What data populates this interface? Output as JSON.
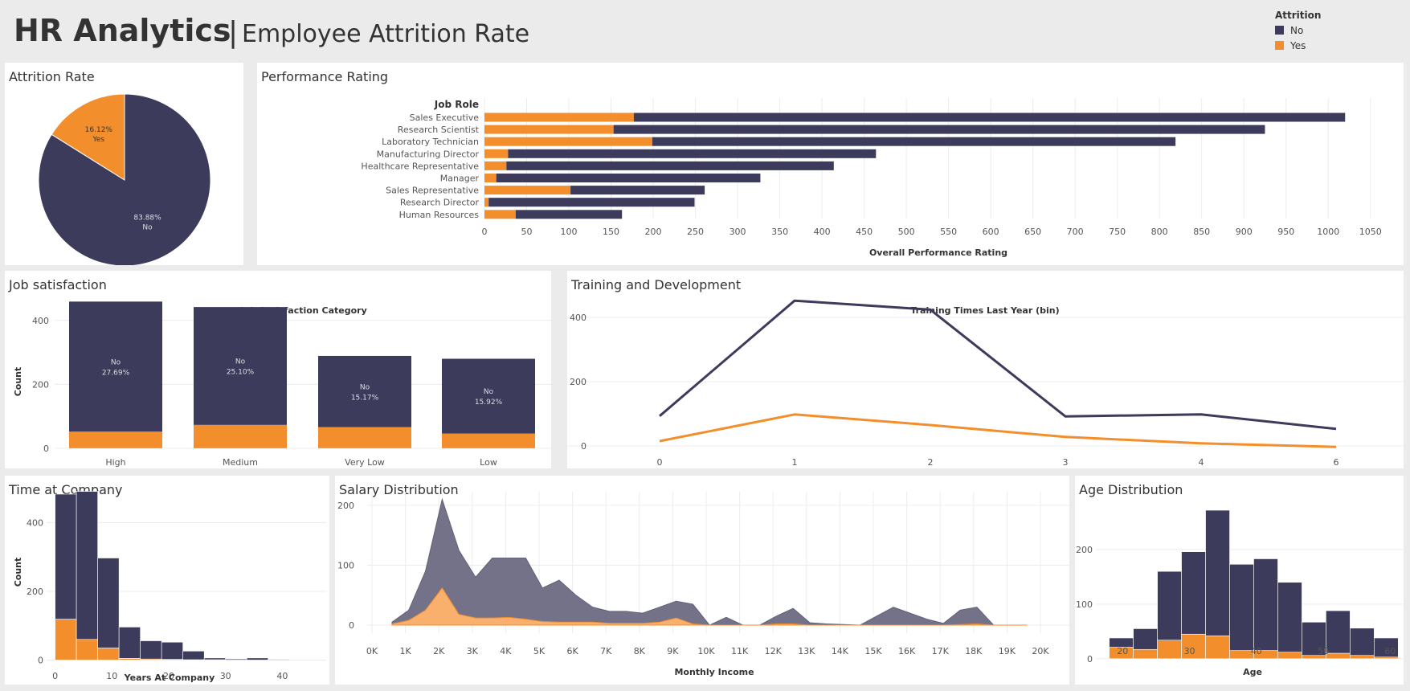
{
  "header": {
    "title": "HR Analytics",
    "separator": "|",
    "subtitle": "Employee Attrition Rate"
  },
  "legend": {
    "title": "Attrition",
    "items": [
      {
        "label": "No",
        "color": "#3d3b5c"
      },
      {
        "label": "Yes",
        "color": "#f28e2b"
      }
    ]
  },
  "colors": {
    "no": "#3d3b5c",
    "yes": "#f28e2b",
    "no_area": "#6c6b82",
    "yes_area": "#f8b06c",
    "grid": "#ececec",
    "axis_text": "#555555"
  },
  "panels": {
    "attrition": {
      "title": "Attrition Rate"
    },
    "performance": {
      "title": "Performance Rating"
    },
    "satisfaction": {
      "title": "Job satisfaction"
    },
    "training": {
      "title": "Training and Development"
    },
    "time": {
      "title": "Time at Company"
    },
    "salary": {
      "title": "Salary Distribution"
    },
    "age": {
      "title": "Age Distribution"
    }
  },
  "chart_data": [
    {
      "id": "attrition-rate",
      "type": "pie",
      "title": "Attrition Rate",
      "slices": [
        {
          "label": "No",
          "value": 83.88,
          "text": "83.88%"
        },
        {
          "label": "Yes",
          "value": 16.12,
          "text": "16.12%"
        }
      ]
    },
    {
      "id": "performance-rating",
      "type": "bar",
      "orientation": "horizontal",
      "stacked": true,
      "title": "Performance Rating",
      "ylabel": "Job Role",
      "xlabel": "Overall Performance Rating",
      "xlim": [
        0,
        1075
      ],
      "xticks": [
        0,
        50,
        100,
        150,
        200,
        250,
        300,
        350,
        400,
        450,
        500,
        550,
        600,
        650,
        700,
        750,
        800,
        850,
        900,
        950,
        1000,
        1050
      ],
      "categories": [
        "Sales Executive",
        "Research Scientist",
        "Laboratory Technician",
        "Manufacturing Director",
        "Healthcare Representative",
        "Manager",
        "Sales Representative",
        "Research Director",
        "Human Resources"
      ],
      "series": [
        {
          "name": "Yes",
          "values": [
            177,
            153,
            199,
            28,
            26,
            14,
            102,
            5,
            37
          ]
        },
        {
          "name": "No",
          "values": [
            843,
            772,
            620,
            436,
            388,
            313,
            159,
            244,
            126
          ]
        }
      ]
    },
    {
      "id": "job-satisfaction",
      "type": "bar",
      "stacked": true,
      "title": "Job Satisfaction Category",
      "ylabel": "Count",
      "ylim": [
        -18,
        480
      ],
      "yticks": [
        0,
        200,
        400
      ],
      "categories": [
        "High",
        "Medium",
        "Very Low",
        "Low"
      ],
      "series": [
        {
          "name": "No",
          "values": [
            407,
            369,
            223,
            234
          ],
          "labels": [
            "27.69%",
            "25.10%",
            "15.17%",
            "15.92%"
          ]
        },
        {
          "name": "Yes",
          "values": [
            52,
            73,
            66,
            46
          ]
        }
      ]
    },
    {
      "id": "training-development",
      "type": "line",
      "title": "Training Times Last Year (bin)",
      "x": [
        "0",
        "1",
        "2",
        "3",
        "4",
        "6"
      ],
      "ylim": [
        -25,
        470
      ],
      "yticks": [
        0,
        200,
        400
      ],
      "series": [
        {
          "name": "No",
          "values": [
            93,
            452,
            424,
            92,
            98,
            53
          ]
        },
        {
          "name": "Yes",
          "values": [
            15,
            98,
            65,
            28,
            8,
            -3
          ]
        }
      ]
    },
    {
      "id": "time-at-company",
      "type": "bar",
      "stacked": true,
      "histogram": true,
      "xlabel": "Years At Company",
      "ylabel": "Count",
      "xlim": [
        -1.5,
        41.5
      ],
      "xticks": [
        0,
        10,
        20,
        30,
        40
      ],
      "ylim": [
        -20,
        490
      ],
      "yticks": [
        0,
        200,
        400
      ],
      "bin_width": 3.75,
      "bins": [
        0,
        3.75,
        7.5,
        11.25,
        15,
        18.75,
        22.5,
        26.25,
        30,
        33.75,
        37.5
      ],
      "series": [
        {
          "name": "Yes",
          "values": [
            119,
            60,
            35,
            5,
            3,
            2,
            1,
            1,
            0,
            0,
            0
          ]
        },
        {
          "name": "No",
          "values": [
            364,
            431,
            262,
            91,
            53,
            50,
            25,
            5,
            3,
            6,
            2
          ]
        }
      ]
    },
    {
      "id": "salary-distribution",
      "type": "area",
      "xlabel": "Monthly Income",
      "xticks": [
        "0K",
        "1K",
        "2K",
        "3K",
        "4K",
        "5K",
        "6K",
        "7K",
        "8K",
        "9K",
        "10K",
        "11K",
        "12K",
        "13K",
        "14K",
        "15K",
        "16K",
        "17K",
        "18K",
        "19K",
        "20K"
      ],
      "xlim": [
        0,
        20000
      ],
      "ylim": [
        -8,
        220
      ],
      "yticks": [
        0,
        100,
        200
      ],
      "x": [
        600,
        1100,
        1600,
        2100,
        2600,
        3100,
        3600,
        4100,
        4600,
        5100,
        5600,
        6100,
        6600,
        7100,
        7600,
        8100,
        8600,
        9100,
        9600,
        10100,
        10600,
        11100,
        11600,
        12100,
        12600,
        13100,
        13600,
        14100,
        14600,
        15100,
        15600,
        16100,
        16600,
        17100,
        17600,
        18100,
        18600,
        19100,
        19600
      ],
      "series": [
        {
          "name": "No",
          "values": [
            5,
            25,
            90,
            210,
            125,
            80,
            112,
            112,
            112,
            62,
            75,
            50,
            30,
            23,
            23,
            20,
            30,
            40,
            35,
            0,
            13,
            0,
            0,
            15,
            28,
            4,
            2,
            1,
            0,
            15,
            30,
            20,
            10,
            3,
            25,
            30,
            0,
            0,
            0
          ]
        },
        {
          "name": "Yes",
          "values": [
            2,
            8,
            25,
            62,
            18,
            12,
            12,
            13,
            10,
            6,
            5,
            5,
            5,
            3,
            3,
            3,
            5,
            12,
            2,
            0,
            0,
            0,
            0,
            2,
            2,
            0,
            0,
            0,
            0,
            0,
            0,
            0,
            0,
            0,
            1,
            2,
            0,
            0,
            0
          ]
        }
      ]
    },
    {
      "id": "age-distribution",
      "type": "bar",
      "stacked": true,
      "histogram": true,
      "xlabel": "Age",
      "xlim": [
        16,
        62
      ],
      "xticks": [
        20,
        30,
        40,
        50,
        60
      ],
      "ylim": [
        -15,
        300
      ],
      "yticks": [
        0,
        100,
        200
      ],
      "bin_width": 3.6,
      "bins": [
        18,
        21.6,
        25.2,
        28.8,
        32.4,
        36,
        39.6,
        43.2,
        46.8,
        50.4,
        54,
        57.6
      ],
      "series": [
        {
          "name": "Yes",
          "values": [
            21,
            17,
            34,
            45,
            42,
            15,
            15,
            12,
            6,
            10,
            6,
            3
          ]
        },
        {
          "name": "No",
          "values": [
            17,
            38,
            126,
            151,
            230,
            158,
            168,
            128,
            61,
            78,
            50,
            35
          ]
        }
      ]
    }
  ]
}
